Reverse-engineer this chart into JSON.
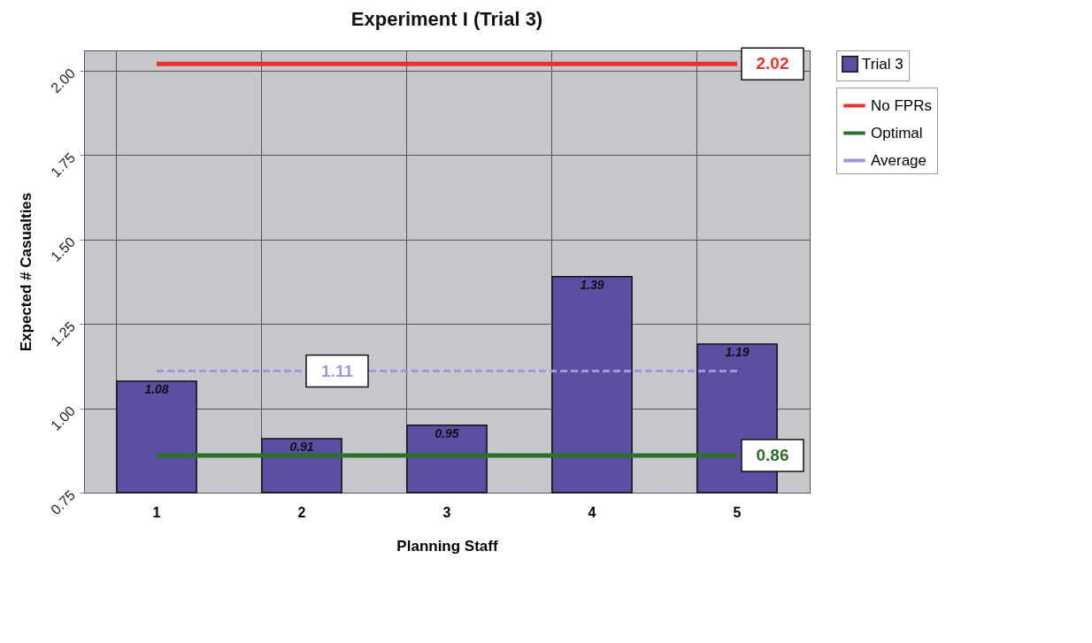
{
  "chart_data": {
    "type": "bar",
    "title": "Experiment I (Trial 3)",
    "xlabel": "Planning Staff",
    "ylabel": "Expected # Casualties",
    "categories": [
      "1",
      "2",
      "3",
      "4",
      "5"
    ],
    "series": [
      {
        "name": "Trial 3",
        "color": "#5b4fa3",
        "values": [
          1.08,
          0.91,
          0.95,
          1.39,
          1.19
        ],
        "data_labels": true
      },
      {
        "name": "No FPRs",
        "type": "line",
        "color": "#e8322e",
        "values": [
          2.02,
          2.02,
          2.02,
          2.02,
          2.02
        ],
        "value_labels": [
          null,
          null,
          null,
          null,
          "2.02"
        ]
      },
      {
        "name": "Optimal",
        "type": "line",
        "color": "#2f6e2a",
        "values": [
          0.86,
          0.86,
          0.86,
          0.86,
          0.86
        ],
        "value_labels": [
          null,
          null,
          null,
          null,
          "0.86"
        ]
      },
      {
        "name": "Average",
        "type": "line",
        "color": "#a596dc",
        "line_style": "dashed",
        "values": [
          1.11,
          1.11,
          1.11,
          1.11,
          1.11
        ],
        "value_labels": [
          null,
          "1.11",
          null,
          null,
          null
        ]
      }
    ],
    "ylim": [
      0.75,
      2.06
    ],
    "yticks": [
      {
        "value": 0.75,
        "label": "0.75"
      },
      {
        "value": 1,
        "label": "1.00"
      },
      {
        "value": 1.25,
        "label": "1.25"
      },
      {
        "value": 1.5,
        "label": "1.50"
      },
      {
        "value": 1.75,
        "label": "1.75"
      },
      {
        "value": 2,
        "label": "2.00"
      }
    ],
    "grid": true,
    "legend": "right"
  }
}
